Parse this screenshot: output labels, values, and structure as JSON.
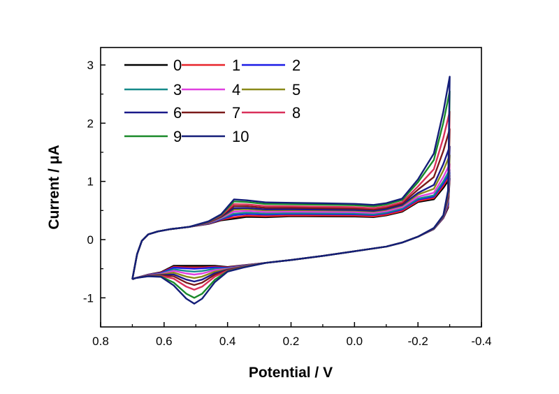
{
  "chart_data": {
    "type": "line",
    "title": "",
    "xlabel": "Potential / V",
    "ylabel": "Current / μA",
    "xlim": [
      0.8,
      -0.4
    ],
    "ylim": [
      -1.5,
      3.3
    ],
    "x_reversed": true,
    "x_ticks": [
      0.8,
      0.6,
      0.4,
      0.2,
      0.0,
      -0.2,
      -0.4
    ],
    "x_tick_labels": [
      "0.8",
      "0.6",
      "0.4",
      "0.2",
      "0.0",
      "-0.2",
      "-0.4"
    ],
    "y_ticks": [
      -1,
      0,
      1,
      2,
      3
    ],
    "y_tick_labels": [
      "-1",
      "0",
      "1",
      "2",
      "3"
    ],
    "grid": false,
    "legend_position": "top-left",
    "legend_columns": 3,
    "series": [
      {
        "name": "0",
        "color": "#000000",
        "plateau": 0.39,
        "end_current": 1.05,
        "reduction_peak": -0.45
      },
      {
        "name": "1",
        "color": "#e8232a",
        "plateau": 0.4,
        "end_current": 1.1,
        "reduction_peak": -0.48
      },
      {
        "name": "2",
        "color": "#1a1ae6",
        "plateau": 0.42,
        "end_current": 1.15,
        "reduction_peak": -0.5
      },
      {
        "name": "3",
        "color": "#168a8a",
        "plateau": 0.43,
        "end_current": 1.2,
        "reduction_peak": -0.55
      },
      {
        "name": "4",
        "color": "#e040e0",
        "plateau": 0.45,
        "end_current": 1.3,
        "reduction_peak": -0.6
      },
      {
        "name": "5",
        "color": "#8a8a1a",
        "plateau": 0.47,
        "end_current": 1.45,
        "reduction_peak": -0.66
      },
      {
        "name": "6",
        "color": "#1a1a8a",
        "plateau": 0.48,
        "end_current": 1.6,
        "reduction_peak": -0.72
      },
      {
        "name": "7",
        "color": "#7a1a1a",
        "plateau": 0.5,
        "end_current": 1.9,
        "reduction_peak": -0.78
      },
      {
        "name": "8",
        "color": "#d9305a",
        "plateau": 0.52,
        "end_current": 2.2,
        "reduction_peak": -0.86
      },
      {
        "name": "9",
        "color": "#1a8a2a",
        "plateau": 0.55,
        "end_current": 2.55,
        "reduction_peak": -1.0
      },
      {
        "name": "10",
        "color": "#141e78",
        "plateau": 0.57,
        "end_current": 2.8,
        "reduction_peak": -1.1
      }
    ]
  }
}
